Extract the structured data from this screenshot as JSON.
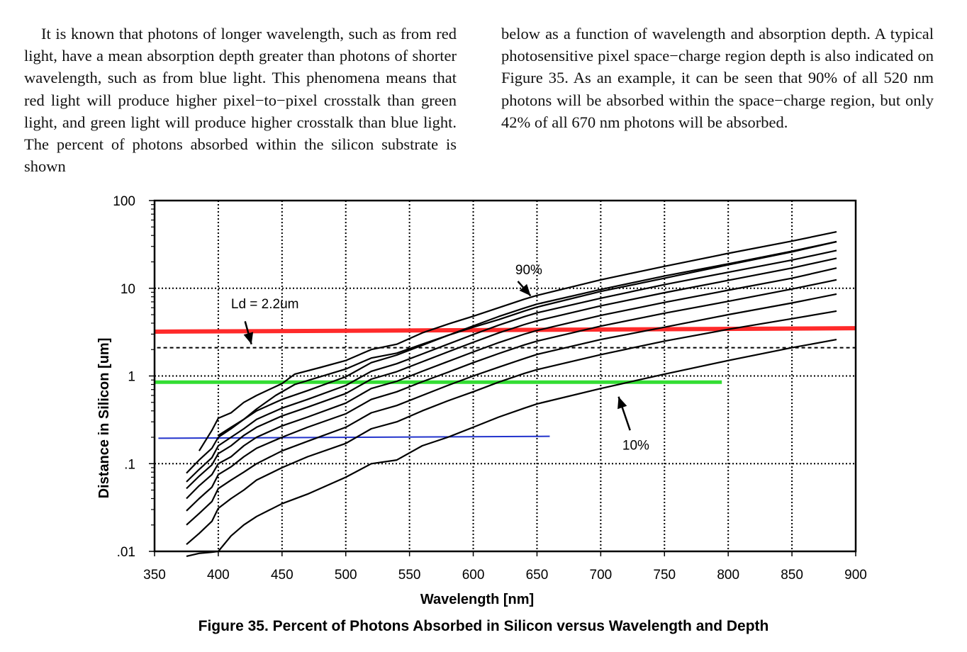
{
  "text": {
    "left_paragraph": "It is known that photons of longer wavelength, such as from red light, have a mean absorption depth greater than photons of shorter wavelength, such as from blue light. This phenomena means that red light will produce higher pixel−to−pixel crosstalk than green light, and green light will produce higher crosstalk than blue light. The percent of photons absorbed within the silicon substrate is shown",
    "right_paragraph": "below as a function of wavelength and absorption depth. A typical photosensitive pixel space−charge region depth is also indicated on Figure 35. As an example, it can be seen that 90% of all 520 nm photons will be absorbed within the space−charge region, but only 42% of all 670 nm photons will be absorbed."
  },
  "caption": "Figure 35. Percent of Photons Absorbed in Silicon versus Wavelength and Depth",
  "chart_data": {
    "type": "line",
    "xlabel": "Wavelength [nm]",
    "ylabel": "Distance in Silicon [um]",
    "xlim": [
      350,
      900
    ],
    "ylim": [
      0.01,
      100
    ],
    "y_scale": "log",
    "x_ticks": [
      "350",
      "400",
      "450",
      "500",
      "550",
      "600",
      "650",
      "700",
      "750",
      "800",
      "850",
      "900"
    ],
    "y_ticks": [
      {
        "value": 0.01,
        "label": ".01"
      },
      {
        "value": 0.1,
        "label": ".1"
      },
      {
        "value": 1,
        "label": "1"
      },
      {
        "value": 10,
        "label": "10"
      },
      {
        "value": 100,
        "label": "100"
      }
    ],
    "grid": "dotted",
    "curves": [
      {
        "x": [
          375,
          385,
          395,
          400,
          410,
          420,
          430,
          450,
          470,
          500,
          520,
          540,
          560,
          580,
          600,
          620,
          640,
          650,
          700,
          750,
          800,
          850,
          885
        ],
        "y": [
          0.0088,
          0.0095,
          0.0098,
          0.01,
          0.015,
          0.02,
          0.025,
          0.035,
          0.045,
          0.07,
          0.1,
          0.11,
          0.16,
          0.2,
          0.26,
          0.34,
          0.43,
          0.48,
          0.72,
          1.05,
          1.5,
          2.1,
          2.6
        ]
      },
      {
        "x": [
          375,
          385,
          395,
          400,
          410,
          420,
          430,
          450,
          470,
          500,
          520,
          540,
          560,
          580,
          600,
          620,
          640,
          650,
          700,
          750,
          800,
          850,
          885
        ],
        "y": [
          0.012,
          0.016,
          0.022,
          0.031,
          0.04,
          0.05,
          0.065,
          0.09,
          0.12,
          0.17,
          0.25,
          0.3,
          0.4,
          0.52,
          0.66,
          0.85,
          1.07,
          1.18,
          1.75,
          2.5,
          3.4,
          4.5,
          5.5
        ]
      },
      {
        "x": [
          375,
          385,
          395,
          400,
          410,
          420,
          430,
          450,
          470,
          500,
          520,
          540,
          560,
          580,
          600,
          620,
          640,
          650,
          700,
          750,
          800,
          850,
          885
        ],
        "y": [
          0.02,
          0.027,
          0.037,
          0.052,
          0.065,
          0.08,
          0.1,
          0.14,
          0.18,
          0.26,
          0.38,
          0.46,
          0.6,
          0.78,
          1.0,
          1.26,
          1.58,
          1.76,
          2.6,
          3.6,
          5.0,
          6.8,
          8.6
        ]
      },
      {
        "x": [
          375,
          385,
          395,
          400,
          410,
          420,
          430,
          450,
          470,
          500,
          520,
          540,
          560,
          580,
          600,
          620,
          640,
          650,
          700,
          750,
          800,
          850,
          885
        ],
        "y": [
          0.029,
          0.04,
          0.054,
          0.075,
          0.092,
          0.12,
          0.15,
          0.2,
          0.26,
          0.37,
          0.54,
          0.66,
          0.86,
          1.1,
          1.42,
          1.8,
          2.26,
          2.5,
          3.7,
          5.2,
          7.1,
          9.8,
          12.5
        ]
      },
      {
        "x": [
          375,
          385,
          395,
          400,
          410,
          420,
          430,
          450,
          470,
          500,
          520,
          540,
          560,
          580,
          600,
          620,
          640,
          650,
          700,
          750,
          800,
          850,
          885
        ],
        "y": [
          0.04,
          0.056,
          0.075,
          0.1,
          0.12,
          0.16,
          0.2,
          0.27,
          0.34,
          0.49,
          0.72,
          0.87,
          1.13,
          1.46,
          1.88,
          2.4,
          3.0,
          3.3,
          4.9,
          6.9,
          9.5,
          13.0,
          17.0
        ]
      },
      {
        "x": [
          375,
          385,
          395,
          400,
          410,
          420,
          430,
          450,
          470,
          500,
          520,
          540,
          560,
          580,
          600,
          620,
          640,
          650,
          700,
          750,
          800,
          850,
          885
        ],
        "y": [
          0.052,
          0.072,
          0.097,
          0.13,
          0.16,
          0.21,
          0.26,
          0.35,
          0.44,
          0.63,
          0.92,
          1.12,
          1.45,
          1.88,
          2.42,
          3.1,
          3.85,
          4.25,
          6.3,
          8.9,
          12.3,
          17.0,
          22.0
        ]
      },
      {
        "x": [
          375,
          385,
          395,
          400,
          410,
          420,
          430,
          450,
          470,
          500,
          520,
          540,
          560,
          580,
          600,
          620,
          640,
          650,
          700,
          750,
          800,
          850,
          885
        ],
        "y": [
          0.062,
          0.086,
          0.117,
          0.16,
          0.2,
          0.25,
          0.32,
          0.43,
          0.54,
          0.78,
          1.13,
          1.38,
          1.78,
          2.3,
          2.97,
          3.8,
          4.75,
          5.25,
          7.7,
          11.0,
          15.2,
          21.0,
          27.0
        ]
      },
      {
        "x": [
          375,
          385,
          395,
          400,
          410,
          420,
          430,
          450,
          470,
          500,
          520,
          540,
          560,
          580,
          600,
          620,
          640,
          650,
          700,
          750,
          800,
          850,
          885
        ],
        "y": [
          0.078,
          0.11,
          0.15,
          0.2,
          0.25,
          0.32,
          0.4,
          0.54,
          0.68,
          0.98,
          1.42,
          1.73,
          2.24,
          2.9,
          3.72,
          4.76,
          5.95,
          6.6,
          9.7,
          13.8,
          19.0,
          26.5,
          34.0
        ]
      },
      {
        "x": [
          385,
          395,
          400,
          410,
          420,
          430,
          450,
          460,
          480,
          500,
          520,
          540,
          560,
          580,
          600,
          620,
          640,
          650,
          700,
          750,
          800,
          850,
          885
        ],
        "y": [
          0.14,
          0.24,
          0.33,
          0.38,
          0.5,
          0.6,
          0.82,
          1.05,
          1.25,
          1.5,
          2.0,
          2.3,
          3.1,
          3.9,
          4.8,
          6.0,
          7.5,
          8.3,
          12.5,
          17.8,
          25.0,
          34.5,
          44.0
        ]
      },
      {
        "x": [
          400,
          410,
          420,
          430,
          445,
          460,
          480,
          500,
          520,
          540,
          560,
          580,
          600,
          620,
          640,
          650,
          700,
          750,
          800,
          850,
          885
        ],
        "y": [
          0.21,
          0.26,
          0.32,
          0.42,
          0.6,
          0.8,
          0.98,
          1.2,
          1.6,
          1.82,
          2.3,
          2.9,
          3.6,
          4.4,
          5.5,
          6.1,
          9.2,
          13.0,
          18.5,
          26.0,
          34.0
        ]
      }
    ],
    "reference_lines": [
      {
        "color": "#ff2a2a",
        "x": [
          350,
          900
        ],
        "y": [
          3.2,
          3.5
        ]
      },
      {
        "color": "#33dd33",
        "x": [
          350,
          795
        ],
        "y": [
          0.85,
          0.85
        ]
      },
      {
        "color": "#2233cc",
        "x": [
          353,
          660
        ],
        "y": [
          0.195,
          0.205
        ]
      },
      {
        "style": "dashed",
        "x": [
          352,
          900
        ],
        "y": [
          2.1,
          2.1
        ]
      }
    ],
    "annotations": [
      {
        "text": "Ld = 2.2um",
        "x": 410,
        "y": 5.9,
        "arrow_from": [
          421,
          4.2
        ],
        "arrow_to": [
          426,
          2.3
        ]
      },
      {
        "text": "90%",
        "x": 633,
        "y": 14.5,
        "arrow_from": [
          635,
          12.0
        ],
        "arrow_to": [
          645,
          8.2
        ]
      },
      {
        "text": "10%",
        "x": 717,
        "y": 0.145,
        "arrow_from": [
          723,
          0.24
        ],
        "arrow_to": [
          714,
          0.58
        ]
      }
    ]
  }
}
